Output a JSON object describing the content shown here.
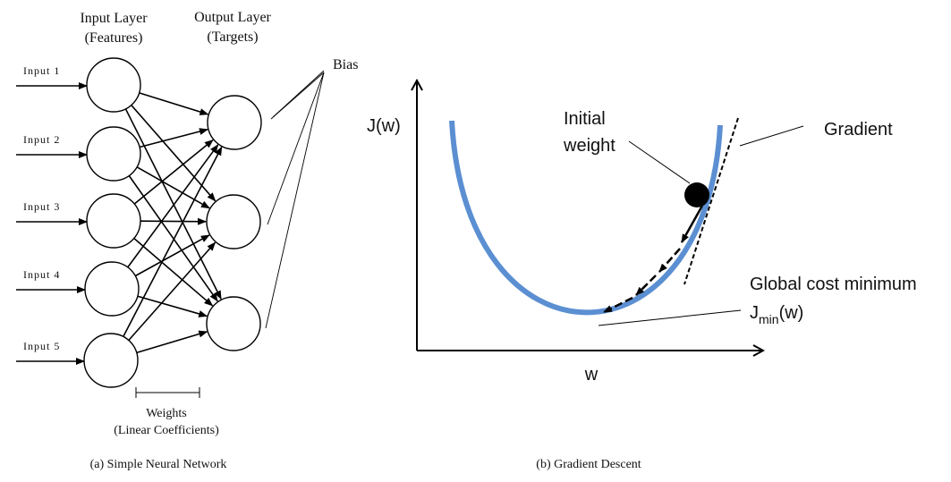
{
  "neural_network": {
    "input_layer_title": "Input Layer",
    "input_layer_subtitle": "(Features)",
    "output_layer_title": "Output Layer",
    "output_layer_subtitle": "(Targets)",
    "inputs": [
      "Input 1",
      "Input 2",
      "Input 3",
      "Input 4",
      "Input 5"
    ],
    "bias_label": "Bias",
    "weights_label": "Weights",
    "weights_sublabel": "(Linear Coefficients)",
    "caption": "(a) Simple Neural Network"
  },
  "gradient_descent": {
    "y_axis_label": "J(w)",
    "x_axis_label": "w",
    "initial_weight_line1": "Initial",
    "initial_weight_line2": "weight",
    "gradient_label": "Gradient",
    "global_min_label": "Global cost minimum",
    "jmin_base": "J",
    "jmin_sub": "min",
    "jmin_tail": "(w)",
    "caption": "(b) Gradient Descent",
    "curve_color": "#5b8fd2"
  }
}
